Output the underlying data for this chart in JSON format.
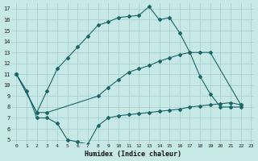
{
  "xlabel": "Humidex (Indice chaleur)",
  "bg_color": "#c6e8e6",
  "grid_color": "#a8cccc",
  "line_color": "#1a6666",
  "xlim": [
    -0.5,
    23.3
  ],
  "ylim": [
    4.7,
    17.5
  ],
  "xticks": [
    0,
    1,
    2,
    3,
    4,
    5,
    6,
    7,
    8,
    9,
    10,
    11,
    12,
    13,
    14,
    15,
    16,
    17,
    18,
    19,
    20,
    21,
    22,
    23
  ],
  "yticks": [
    5,
    6,
    7,
    8,
    9,
    10,
    11,
    12,
    13,
    14,
    15,
    16,
    17
  ],
  "line1_x": [
    0,
    2,
    3,
    4,
    5,
    6,
    7,
    8,
    9,
    10,
    11,
    12,
    13,
    14,
    15,
    16,
    17,
    18,
    19,
    20,
    21,
    22
  ],
  "line1_y": [
    11,
    7.5,
    9.5,
    11.5,
    12.5,
    13.5,
    14.5,
    15.5,
    15.8,
    16.2,
    16.3,
    16.4,
    17.2,
    16.0,
    16.2,
    14.8,
    13.0,
    10.8,
    9.2,
    8.0,
    8.0,
    8.0
  ],
  "line2_x": [
    0,
    2,
    3,
    8,
    9,
    10,
    11,
    12,
    13,
    14,
    15,
    16,
    17,
    18,
    19,
    22
  ],
  "line2_y": [
    11,
    7.5,
    7.5,
    9.0,
    9.8,
    10.5,
    11.2,
    11.5,
    11.8,
    12.2,
    12.5,
    12.8,
    13.0,
    13.0,
    13.0,
    8.2
  ],
  "line3_x": [
    0,
    1,
    2,
    3,
    4,
    5,
    6,
    7,
    8,
    9,
    10,
    11,
    12,
    13,
    14,
    15,
    16,
    17,
    18,
    19,
    20,
    21,
    22
  ],
  "line3_y": [
    11,
    9.5,
    7.0,
    7.0,
    6.5,
    5.0,
    4.8,
    4.6,
    6.3,
    7.0,
    7.2,
    7.3,
    7.4,
    7.5,
    7.6,
    7.7,
    7.8,
    8.0,
    8.1,
    8.2,
    8.3,
    8.4,
    8.2
  ]
}
